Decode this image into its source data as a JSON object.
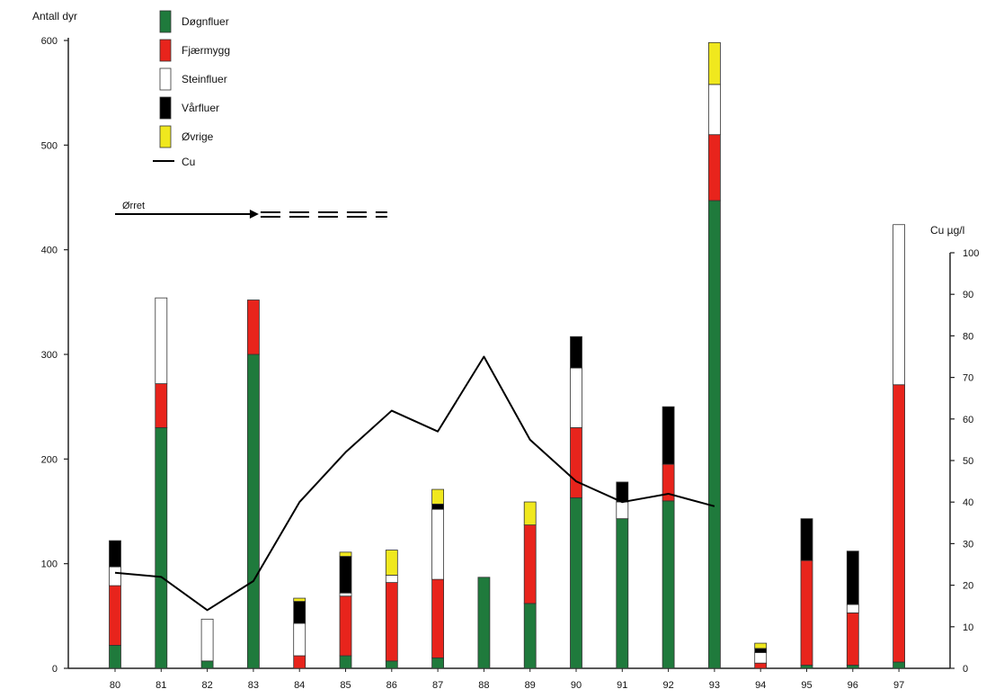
{
  "chart_data": {
    "type": "bar",
    "stacked": true,
    "categories": [
      "80",
      "81",
      "82",
      "83",
      "84",
      "85",
      "86",
      "87",
      "88",
      "89",
      "90",
      "91",
      "92",
      "93",
      "94",
      "95",
      "96",
      "97"
    ],
    "series": [
      {
        "name": "Døgnfluer",
        "color": "#1f7a3c",
        "values": [
          22,
          230,
          7,
          300,
          0,
          12,
          7,
          10,
          87,
          62,
          163,
          143,
          160,
          447,
          0,
          3,
          3,
          6
        ]
      },
      {
        "name": "Fjærmygg",
        "color": "#e8241c",
        "values": [
          57,
          42,
          0,
          52,
          12,
          57,
          75,
          75,
          0,
          75,
          67,
          0,
          35,
          63,
          5,
          100,
          50,
          265
        ]
      },
      {
        "name": "Steinfluer",
        "color": "#ffffff",
        "values": [
          18,
          82,
          40,
          0,
          31,
          3,
          7,
          67,
          0,
          0,
          57,
          16,
          0,
          48,
          10,
          0,
          8,
          153
        ]
      },
      {
        "name": "Vårfluer",
        "color": "#000000",
        "values": [
          25,
          0,
          0,
          0,
          21,
          35,
          0,
          5,
          0,
          0,
          30,
          19,
          55,
          0,
          4,
          40,
          51,
          0
        ]
      },
      {
        "name": "Øvrige",
        "color": "#f0e81e",
        "values": [
          0,
          0,
          0,
          0,
          3,
          4,
          24,
          14,
          0,
          22,
          0,
          0,
          0,
          40,
          5,
          0,
          0,
          0
        ]
      }
    ],
    "line": {
      "name": "Cu",
      "values": [
        23,
        22,
        14,
        21,
        40,
        52,
        62,
        57,
        75,
        55,
        45,
        40,
        42,
        39
      ]
    },
    "ylabel": "Antall dyr",
    "ylim": [
      0,
      600
    ],
    "yticks": [
      "0",
      "100",
      "200",
      "300",
      "400",
      "500",
      "600"
    ],
    "y2label": "Cu µg/l",
    "y2lim": [
      0,
      100
    ],
    "y2ticks": [
      "0",
      "10",
      "20",
      "30",
      "40",
      "50",
      "60",
      "70",
      "80",
      "90",
      "100"
    ],
    "legend_placement": "top-left",
    "annotation": {
      "label": "Ørret",
      "from": "80",
      "to": "83",
      "continues_dashed_to": "86"
    }
  }
}
